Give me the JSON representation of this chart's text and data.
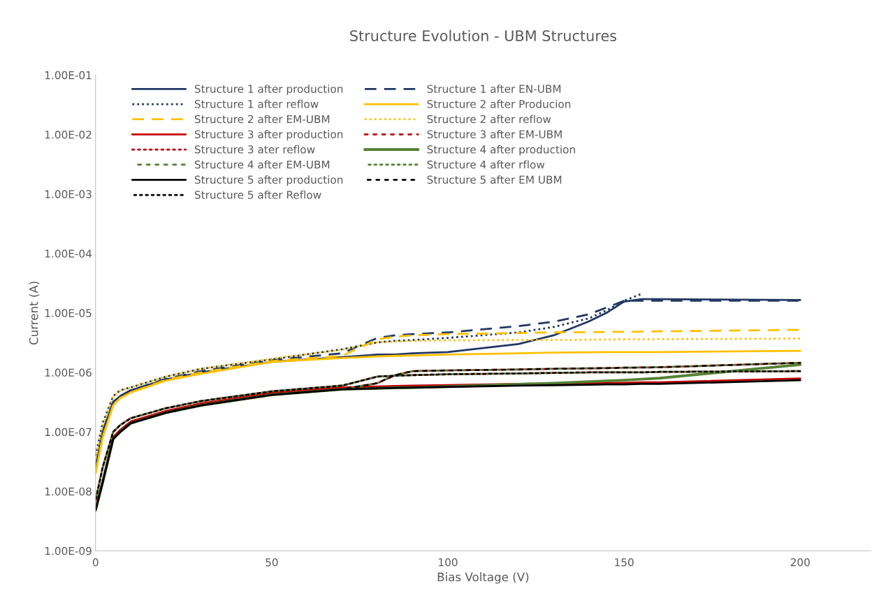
{
  "chart_data": {
    "type": "line",
    "title": "Structure Evolution - UBM Structures",
    "xlabel": "Bias Voltage (V)",
    "ylabel": "Current (A)",
    "log": "y",
    "xlim": [
      0,
      220
    ],
    "xticks": [
      0,
      50,
      100,
      150,
      200
    ],
    "ylim": [
      1e-09,
      0.1
    ],
    "yticks": [
      {
        "value": 1e-09,
        "label": "1.00E-09"
      },
      {
        "value": 1e-08,
        "label": "1.00E-08"
      },
      {
        "value": 1e-07,
        "label": "1.00E-07"
      },
      {
        "value": 1e-06,
        "label": "1.00E-06"
      },
      {
        "value": 1e-05,
        "label": "1.00E-05"
      },
      {
        "value": 0.0001,
        "label": "1.00E-04"
      },
      {
        "value": 0.001,
        "label": "1.00E-03"
      },
      {
        "value": 0.01,
        "label": "1.00E-02"
      },
      {
        "value": 0.1,
        "label": "1.00E-01"
      }
    ],
    "grid": false,
    "legend": "top left",
    "marker": "none",
    "x": [
      0,
      2,
      5,
      7,
      10,
      20,
      30,
      50,
      70,
      80,
      85,
      90,
      100,
      120,
      130,
      140,
      145,
      150,
      155,
      160,
      200
    ],
    "series": [
      {
        "name": "Structure 1 after production",
        "color": "#203864",
        "line_style": "solid",
        "values": [
          2.5e-08,
          1e-07,
          3.2e-07,
          4e-07,
          5e-07,
          7.6e-07,
          1e-06,
          1.5e-06,
          1.8e-06,
          2e-06,
          2e-06,
          2.1e-06,
          2.2e-06,
          3e-06,
          4.2e-06,
          7.2e-06,
          1e-05,
          1.55e-05,
          1.7e-05,
          1.7e-05,
          1.65e-05
        ]
      },
      {
        "name": "Structure 1 after EN-UBM",
        "color": "#203864",
        "line_style": "dashed",
        "values": [
          2.5e-08,
          1e-07,
          3.2e-07,
          4e-07,
          5e-07,
          7.8e-07,
          1.05e-06,
          1.6e-06,
          2.1e-06,
          3.8e-06,
          4.2e-06,
          4.4e-06,
          4.7e-06,
          6e-06,
          7.1e-06,
          9.5e-06,
          1.23e-05,
          1.6e-05,
          1.6e-05,
          1.6e-05,
          1.6e-05
        ]
      },
      {
        "name": "Structure 1 after reflow",
        "color": "#203864",
        "line_style": "dotted",
        "values": [
          4e-08,
          1.4e-07,
          4e-07,
          5e-07,
          5.6e-07,
          8.5e-07,
          1.15e-06,
          1.65e-06,
          2.45e-06,
          3.2e-06,
          3.4e-06,
          3.5e-06,
          3.8e-06,
          4.7e-06,
          5.8e-06,
          8.1e-06,
          1.1e-05,
          1.6e-05,
          2.1e-05,
          null,
          null
        ]
      },
      {
        "name": "Structure 2 after Producion",
        "color": "#ffc000",
        "line_style": "solid",
        "values": [
          2e-08,
          8e-08,
          2.8e-07,
          3.7e-07,
          4.6e-07,
          7.3e-07,
          9.5e-07,
          1.5e-06,
          1.75e-06,
          1.85e-06,
          1.9e-06,
          1.92e-06,
          2e-06,
          2.1e-06,
          2.15e-06,
          2.18e-06,
          2.2e-06,
          2.2e-06,
          2.2e-06,
          2.2e-06,
          2.3e-06
        ]
      },
      {
        "name": "Structure 2 after EM-UBM",
        "color": "#ffc000",
        "line_style": "dashed",
        "values": [
          2e-08,
          8e-08,
          2.8e-07,
          3.7e-07,
          4.6e-07,
          7.5e-07,
          1e-06,
          1.55e-06,
          1.9e-06,
          3.6e-06,
          4e-06,
          4.2e-06,
          4.4e-06,
          4.6e-06,
          4.7e-06,
          4.75e-06,
          4.8e-06,
          4.8e-06,
          4.85e-06,
          4.9e-06,
          5.2e-06
        ]
      },
      {
        "name": "Structure 2 after reflow",
        "color": "#ffc000",
        "line_style": "dotted",
        "values": [
          3.5e-08,
          1.3e-07,
          3.9e-07,
          4.9e-07,
          5.6e-07,
          8.5e-07,
          1.15e-06,
          1.7e-06,
          2.4e-06,
          3.2e-06,
          3.3e-06,
          3.4e-06,
          3.45e-06,
          3.5e-06,
          3.52e-06,
          3.55e-06,
          3.57e-06,
          3.6e-06,
          3.6e-06,
          3.62e-06,
          3.7e-06
        ]
      },
      {
        "name": "Structure 3 after production",
        "color": "#c00000",
        "line_style": "solid",
        "values": [
          5.3e-09,
          1.5e-08,
          8.2e-08,
          1.08e-07,
          1.5e-07,
          2.25e-07,
          3e-07,
          4.5e-07,
          5.6e-07,
          5.8e-07,
          5.9e-07,
          6e-07,
          6.1e-07,
          6.4e-07,
          6.5e-07,
          6.6e-07,
          6.7e-07,
          6.7e-07,
          6.8e-07,
          6.8e-07,
          7.9e-07
        ]
      },
      {
        "name": "Structure 3 after EM-UBM",
        "color": "#c00000",
        "line_style": "dashed",
        "values": [
          4.8e-09,
          1.4e-08,
          7.6e-08,
          1e-07,
          1.4e-07,
          2.1e-07,
          2.8e-07,
          4.2e-07,
          5.2e-07,
          6.6e-07,
          9e-07,
          1.05e-06,
          1.08e-06,
          1.12e-06,
          1.15e-06,
          1.17e-06,
          1.18e-06,
          1.2e-06,
          1.21e-06,
          1.22e-06,
          1.45e-06
        ]
      },
      {
        "name": "Structure 3 ater reflow",
        "color": "#c00000",
        "line_style": "dotted",
        "values": [
          7e-09,
          2.5e-08,
          1e-07,
          1.3e-07,
          1.7e-07,
          2.5e-07,
          3.3e-07,
          4.8e-07,
          6e-07,
          8.5e-07,
          8.8e-07,
          9e-07,
          9.3e-07,
          9.6e-07,
          9.8e-07,
          1e-06,
          1e-06,
          1e-06,
          1e-06,
          1.02e-06,
          1.05e-06
        ]
      },
      {
        "name": "Structure 4 after production",
        "color": "#548235",
        "line_style": "solid",
        "values": [
          4.8e-09,
          1.4e-08,
          7.6e-08,
          1e-07,
          1.4e-07,
          2.1e-07,
          2.8e-07,
          4.2e-07,
          5.2e-07,
          5.4e-07,
          5.5e-07,
          5.55e-07,
          5.8e-07,
          6.3e-07,
          6.6e-07,
          7e-07,
          7.2e-07,
          7.4e-07,
          7.7e-07,
          8e-07,
          1.35e-06
        ]
      },
      {
        "name": "Structure 4 after EM-UBM",
        "color": "#548235",
        "line_style": "dashed",
        "values": [
          4.8e-09,
          1.4e-08,
          7.6e-08,
          1e-07,
          1.4e-07,
          2.1e-07,
          2.8e-07,
          4.2e-07,
          5.2e-07,
          6.6e-07,
          9e-07,
          1.05e-06,
          1.08e-06,
          1.12e-06,
          1.15e-06,
          1.17e-06,
          1.18e-06,
          1.2e-06,
          1.21e-06,
          1.22e-06,
          1.45e-06
        ]
      },
      {
        "name": "Structure 4 after rflow",
        "color": "#548235",
        "line_style": "dotted",
        "values": [
          7e-09,
          2.5e-08,
          1e-07,
          1.3e-07,
          1.7e-07,
          2.5e-07,
          3.3e-07,
          4.8e-07,
          6e-07,
          8.5e-07,
          8.8e-07,
          9e-07,
          9.3e-07,
          9.6e-07,
          9.8e-07,
          1e-06,
          1e-06,
          1e-06,
          1e-06,
          1.02e-06,
          1.05e-06
        ]
      },
      {
        "name": "Structure 5 after production",
        "color": "#000000",
        "line_style": "solid",
        "values": [
          4.8e-09,
          1.4e-08,
          7.6e-08,
          1e-07,
          1.4e-07,
          2.1e-07,
          2.8e-07,
          4.2e-07,
          5.2e-07,
          5.4e-07,
          5.5e-07,
          5.55e-07,
          5.7e-07,
          6e-07,
          6.1e-07,
          6.2e-07,
          6.3e-07,
          6.3e-07,
          6.4e-07,
          6.4e-07,
          7.4e-07
        ]
      },
      {
        "name": "Structure 5 after EM UBM",
        "color": "#000000",
        "line_style": "dashed",
        "values": [
          4.8e-09,
          1.4e-08,
          7.6e-08,
          1e-07,
          1.4e-07,
          2.1e-07,
          2.8e-07,
          4.2e-07,
          5.2e-07,
          6.6e-07,
          9e-07,
          1.05e-06,
          1.08e-06,
          1.12e-06,
          1.15e-06,
          1.17e-06,
          1.18e-06,
          1.2e-06,
          1.21e-06,
          1.22e-06,
          1.45e-06
        ]
      },
      {
        "name": "Structure 5 after Reflow",
        "color": "#000000",
        "line_style": "dotted",
        "values": [
          7e-09,
          2.5e-08,
          1e-07,
          1.3e-07,
          1.7e-07,
          2.5e-07,
          3.3e-07,
          4.8e-07,
          6e-07,
          8.5e-07,
          8.8e-07,
          9e-07,
          9.3e-07,
          9.6e-07,
          9.8e-07,
          1e-06,
          1e-06,
          1e-06,
          1e-06,
          1.02e-06,
          1.05e-06
        ]
      }
    ]
  }
}
